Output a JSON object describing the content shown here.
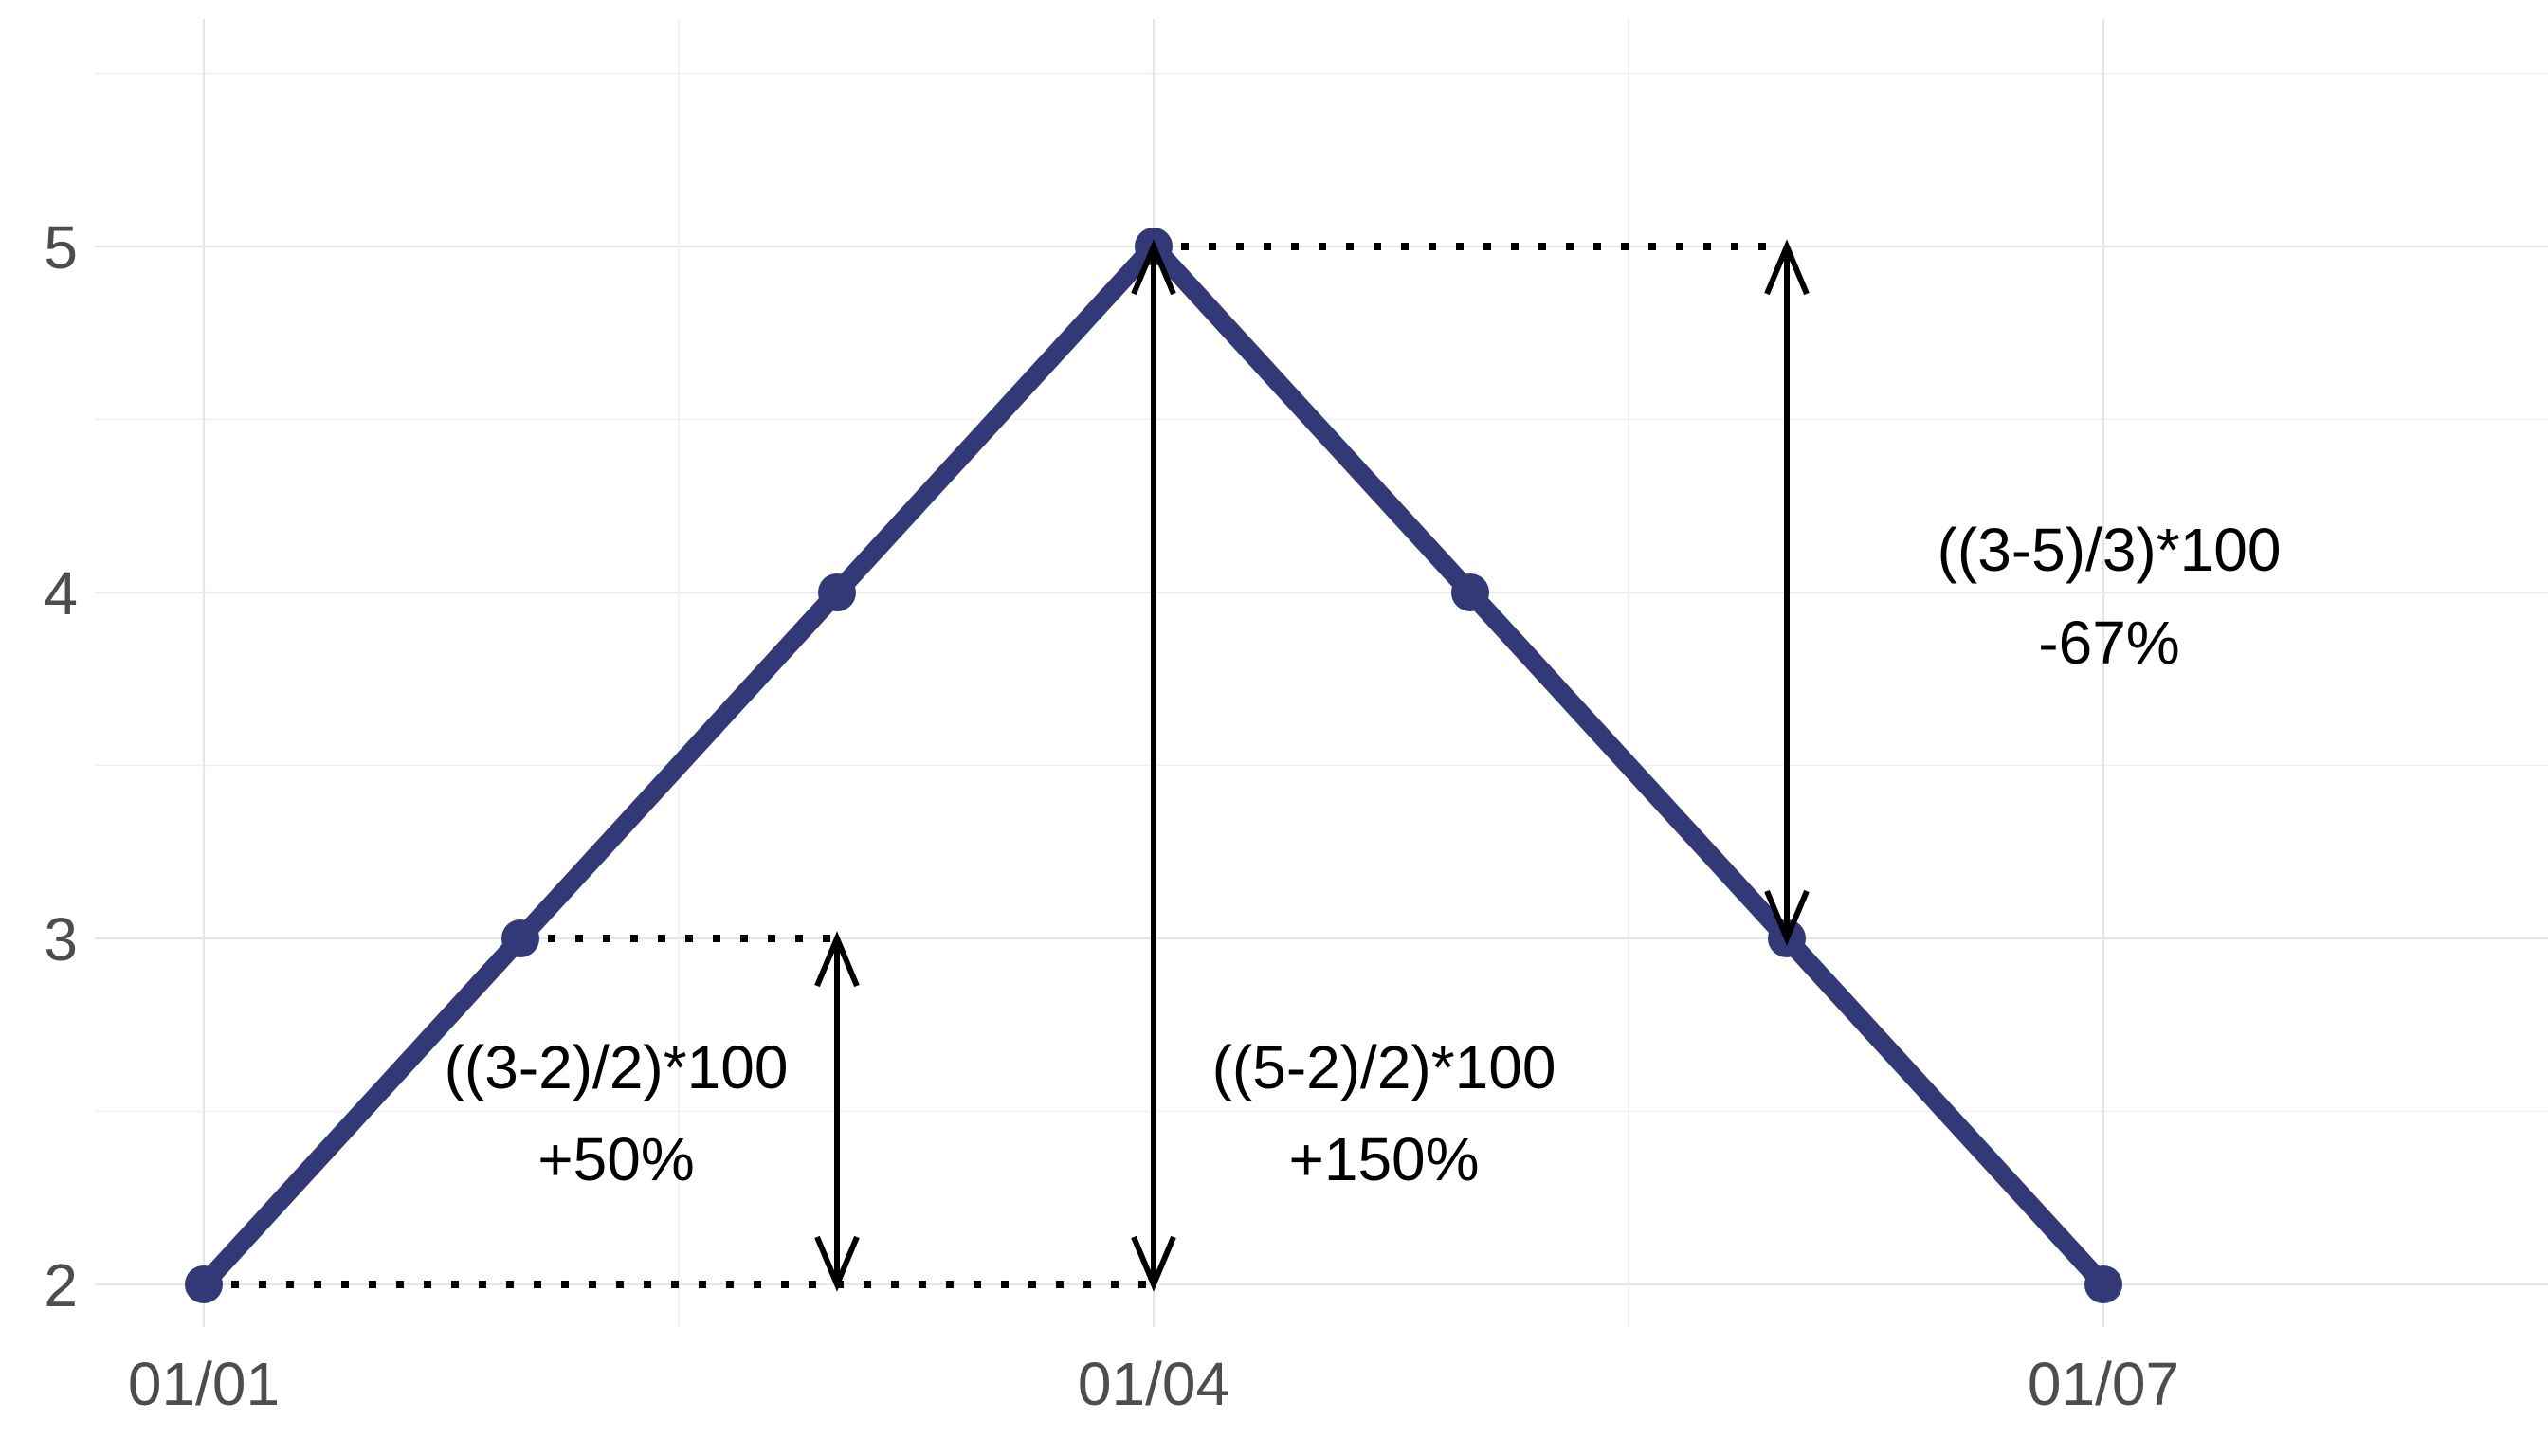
{
  "chart_data": {
    "type": "line",
    "x": [
      "01/01",
      "01/02",
      "01/03",
      "01/04",
      "01/05",
      "01/06",
      "01/07"
    ],
    "series": [
      {
        "values": [
          2,
          3,
          4,
          5,
          4,
          3,
          2
        ],
        "color": "#333876"
      }
    ],
    "xticks": [
      "01/01",
      "01/04",
      "01/07"
    ],
    "yticks": [
      2,
      3,
      4,
      5
    ],
    "ylim": [
      1.88,
      5.64
    ],
    "xlim": [
      "01/01",
      "01/09"
    ],
    "grid": true,
    "title": "",
    "xlabel": "",
    "ylabel": "",
    "reference_lines": [
      {
        "from": "01/01",
        "to": "01/04",
        "y": 2
      },
      {
        "from": "01/02",
        "to": "01/03",
        "y": 3
      },
      {
        "from": "01/04",
        "to": "01/06",
        "y": 5
      }
    ],
    "arrows": [
      {
        "x": "01/03",
        "y_from": 2,
        "y_to": 3,
        "heads": "both"
      },
      {
        "x": "01/04",
        "y_from": 2,
        "y_to": 5,
        "heads": "both"
      },
      {
        "x": "01/06",
        "y_from": 3,
        "y_to": 5,
        "heads": "both"
      }
    ],
    "annotations": [
      {
        "formula": "((3-2)/2)*100",
        "result": "+50%"
      },
      {
        "formula": "((5-2)/2)*100",
        "result": "+150%"
      },
      {
        "formula": "((3-5)/3)*100",
        "result": "-67%"
      }
    ]
  }
}
